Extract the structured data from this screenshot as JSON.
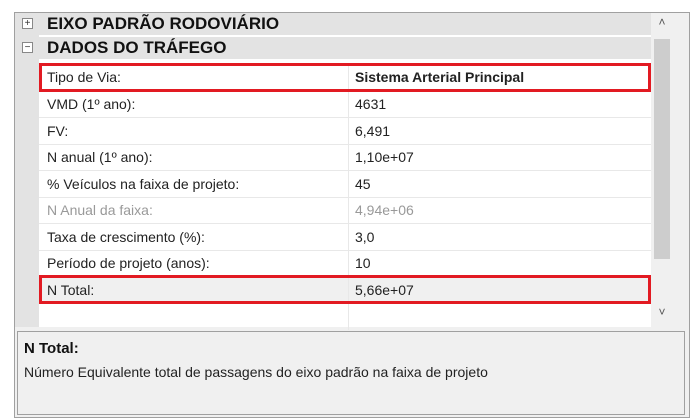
{
  "categories": [
    {
      "label": "EIXO PADRÃO RODOVIÁRIO",
      "toggle": "+"
    },
    {
      "label": "DADOS DO TRÁFEGO",
      "toggle": "−"
    }
  ],
  "rows": [
    {
      "label": "Tipo de Via:",
      "value": "Sistema Arterial Principal"
    },
    {
      "label": "VMD (1º ano):",
      "value": "4631"
    },
    {
      "label": "FV:",
      "value": "6,491"
    },
    {
      "label": "N anual (1º ano):",
      "value": "1,10e+07"
    },
    {
      "label": "% Veículos na faixa de projeto:",
      "value": "45"
    },
    {
      "label": "N Anual da faixa:",
      "value": "4,94e+06"
    },
    {
      "label": "Taxa de crescimento (%):",
      "value": "3,0"
    },
    {
      "label": "Período de projeto (anos):",
      "value": "10"
    },
    {
      "label": "N Total:",
      "value": "5,66e+07"
    }
  ],
  "scrollbar": {
    "up": "˄",
    "down": "˅"
  },
  "help": {
    "title": "N Total:",
    "description": "Número Equivalente total de passagens do eixo padrão na faixa de projeto"
  },
  "highlight_color": "#e21a22"
}
